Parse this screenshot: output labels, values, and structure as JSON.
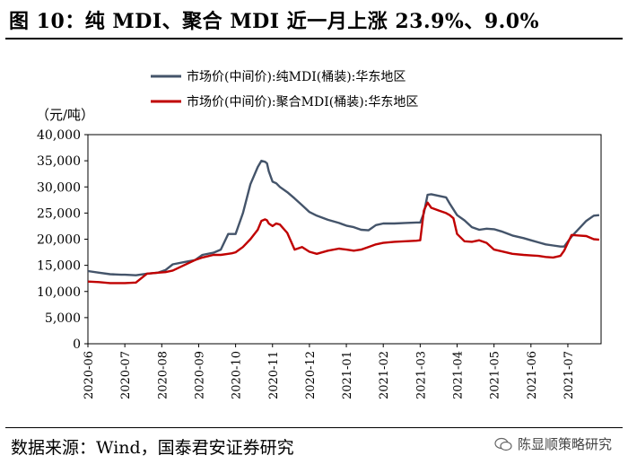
{
  "header": {
    "title": "图 10：纯 MDI、聚合 MDI 近一月上涨 23.9%、9.0%"
  },
  "footer": {
    "source": "数据来源：Wind，国泰君安证券研究",
    "watermark": "陈显顺策略研究"
  },
  "chart_data": {
    "type": "line",
    "title": "纯 MDI、聚合 MDI 近一月上涨 23.9%、9.0%",
    "ylabel": "（元/吨）",
    "ylim": [
      0,
      40000
    ],
    "yticks": [
      0,
      5000,
      10000,
      15000,
      20000,
      25000,
      30000,
      35000,
      40000
    ],
    "ytick_labels": [
      "0",
      "5,000",
      "10,000",
      "15,000",
      "20,000",
      "25,000",
      "30,000",
      "35,000",
      "40,000"
    ],
    "xlim": [
      0,
      13.9
    ],
    "xtick_labels": [
      "2020-06",
      "2020-07",
      "2020-08",
      "2020-09",
      "2020-10",
      "2020-11",
      "2020-12",
      "2021-01",
      "2021-02",
      "2021-03",
      "2021-04",
      "2021-05",
      "2021-06",
      "2021-07"
    ],
    "grid": false,
    "legend_position": "top-center",
    "series": [
      {
        "name": "市场价(中间价):纯MDI(桶装):华东地区",
        "color": "#44546a",
        "x": [
          0,
          0.3,
          0.6,
          0.9,
          1.0,
          1.3,
          1.6,
          1.9,
          2.1,
          2.3,
          2.6,
          2.9,
          3.1,
          3.4,
          3.6,
          3.8,
          3.9,
          4.0,
          4.2,
          4.4,
          4.6,
          4.7,
          4.8,
          4.85,
          4.9,
          5.0,
          5.1,
          5.2,
          5.4,
          5.6,
          5.8,
          6.0,
          6.2,
          6.5,
          6.8,
          7.0,
          7.2,
          7.4,
          7.6,
          7.8,
          8.0,
          8.3,
          8.6,
          8.9,
          9.0,
          9.1,
          9.2,
          9.3,
          9.5,
          9.7,
          9.8,
          9.9,
          10.0,
          10.2,
          10.4,
          10.6,
          10.8,
          11.0,
          11.2,
          11.5,
          11.8,
          12.0,
          12.2,
          12.4,
          12.6,
          12.8,
          12.9,
          13.1,
          13.3,
          13.5,
          13.7,
          13.85
        ],
        "values": [
          13900,
          13600,
          13300,
          13200,
          13200,
          13100,
          13400,
          13600,
          14100,
          15200,
          15600,
          16000,
          17000,
          17400,
          18000,
          21000,
          21000,
          21000,
          25000,
          30500,
          33800,
          35000,
          34800,
          34500,
          33000,
          31000,
          30700,
          30000,
          29000,
          27800,
          26500,
          25200,
          24500,
          23700,
          23100,
          22600,
          22300,
          21800,
          21700,
          22700,
          23000,
          23000,
          23100,
          23200,
          23200,
          25000,
          28500,
          28600,
          28300,
          28000,
          26800,
          25700,
          24600,
          23600,
          22300,
          21800,
          22000,
          21900,
          21500,
          20700,
          20200,
          19800,
          19400,
          19000,
          18800,
          18600,
          18600,
          20500,
          22000,
          23500,
          24500,
          24600
        ]
      },
      {
        "name": "市场价(中间价):聚合MDI(桶装):华东地区",
        "color": "#c00000",
        "x": [
          0,
          0.3,
          0.6,
          0.9,
          1.0,
          1.3,
          1.6,
          1.9,
          2.1,
          2.3,
          2.6,
          2.9,
          3.1,
          3.4,
          3.6,
          3.8,
          3.9,
          4.0,
          4.2,
          4.4,
          4.6,
          4.7,
          4.8,
          4.85,
          4.9,
          5.0,
          5.1,
          5.2,
          5.4,
          5.6,
          5.8,
          6.0,
          6.2,
          6.5,
          6.8,
          7.0,
          7.2,
          7.4,
          7.6,
          7.8,
          8.0,
          8.3,
          8.6,
          8.9,
          9.0,
          9.1,
          9.2,
          9.3,
          9.5,
          9.7,
          9.8,
          9.9,
          10.0,
          10.2,
          10.4,
          10.6,
          10.8,
          11.0,
          11.2,
          11.5,
          11.8,
          12.0,
          12.2,
          12.4,
          12.6,
          12.8,
          12.9,
          13.1,
          13.3,
          13.5,
          13.7,
          13.85
        ],
        "values": [
          11900,
          11800,
          11600,
          11600,
          11600,
          11700,
          13400,
          13600,
          13700,
          14000,
          15000,
          16000,
          16500,
          17000,
          17000,
          17200,
          17300,
          17500,
          18500,
          20000,
          21800,
          23500,
          23800,
          23600,
          23000,
          22500,
          23000,
          22800,
          21200,
          18000,
          18500,
          17600,
          17200,
          17800,
          18200,
          18000,
          17800,
          18000,
          18500,
          19000,
          19300,
          19500,
          19600,
          19700,
          19800,
          25500,
          27000,
          26000,
          25500,
          25000,
          24600,
          24000,
          21000,
          19600,
          19500,
          19800,
          19300,
          18000,
          17700,
          17200,
          17000,
          16900,
          16800,
          16600,
          16500,
          16800,
          17800,
          20800,
          20700,
          20600,
          20000,
          19900
        ]
      }
    ]
  }
}
